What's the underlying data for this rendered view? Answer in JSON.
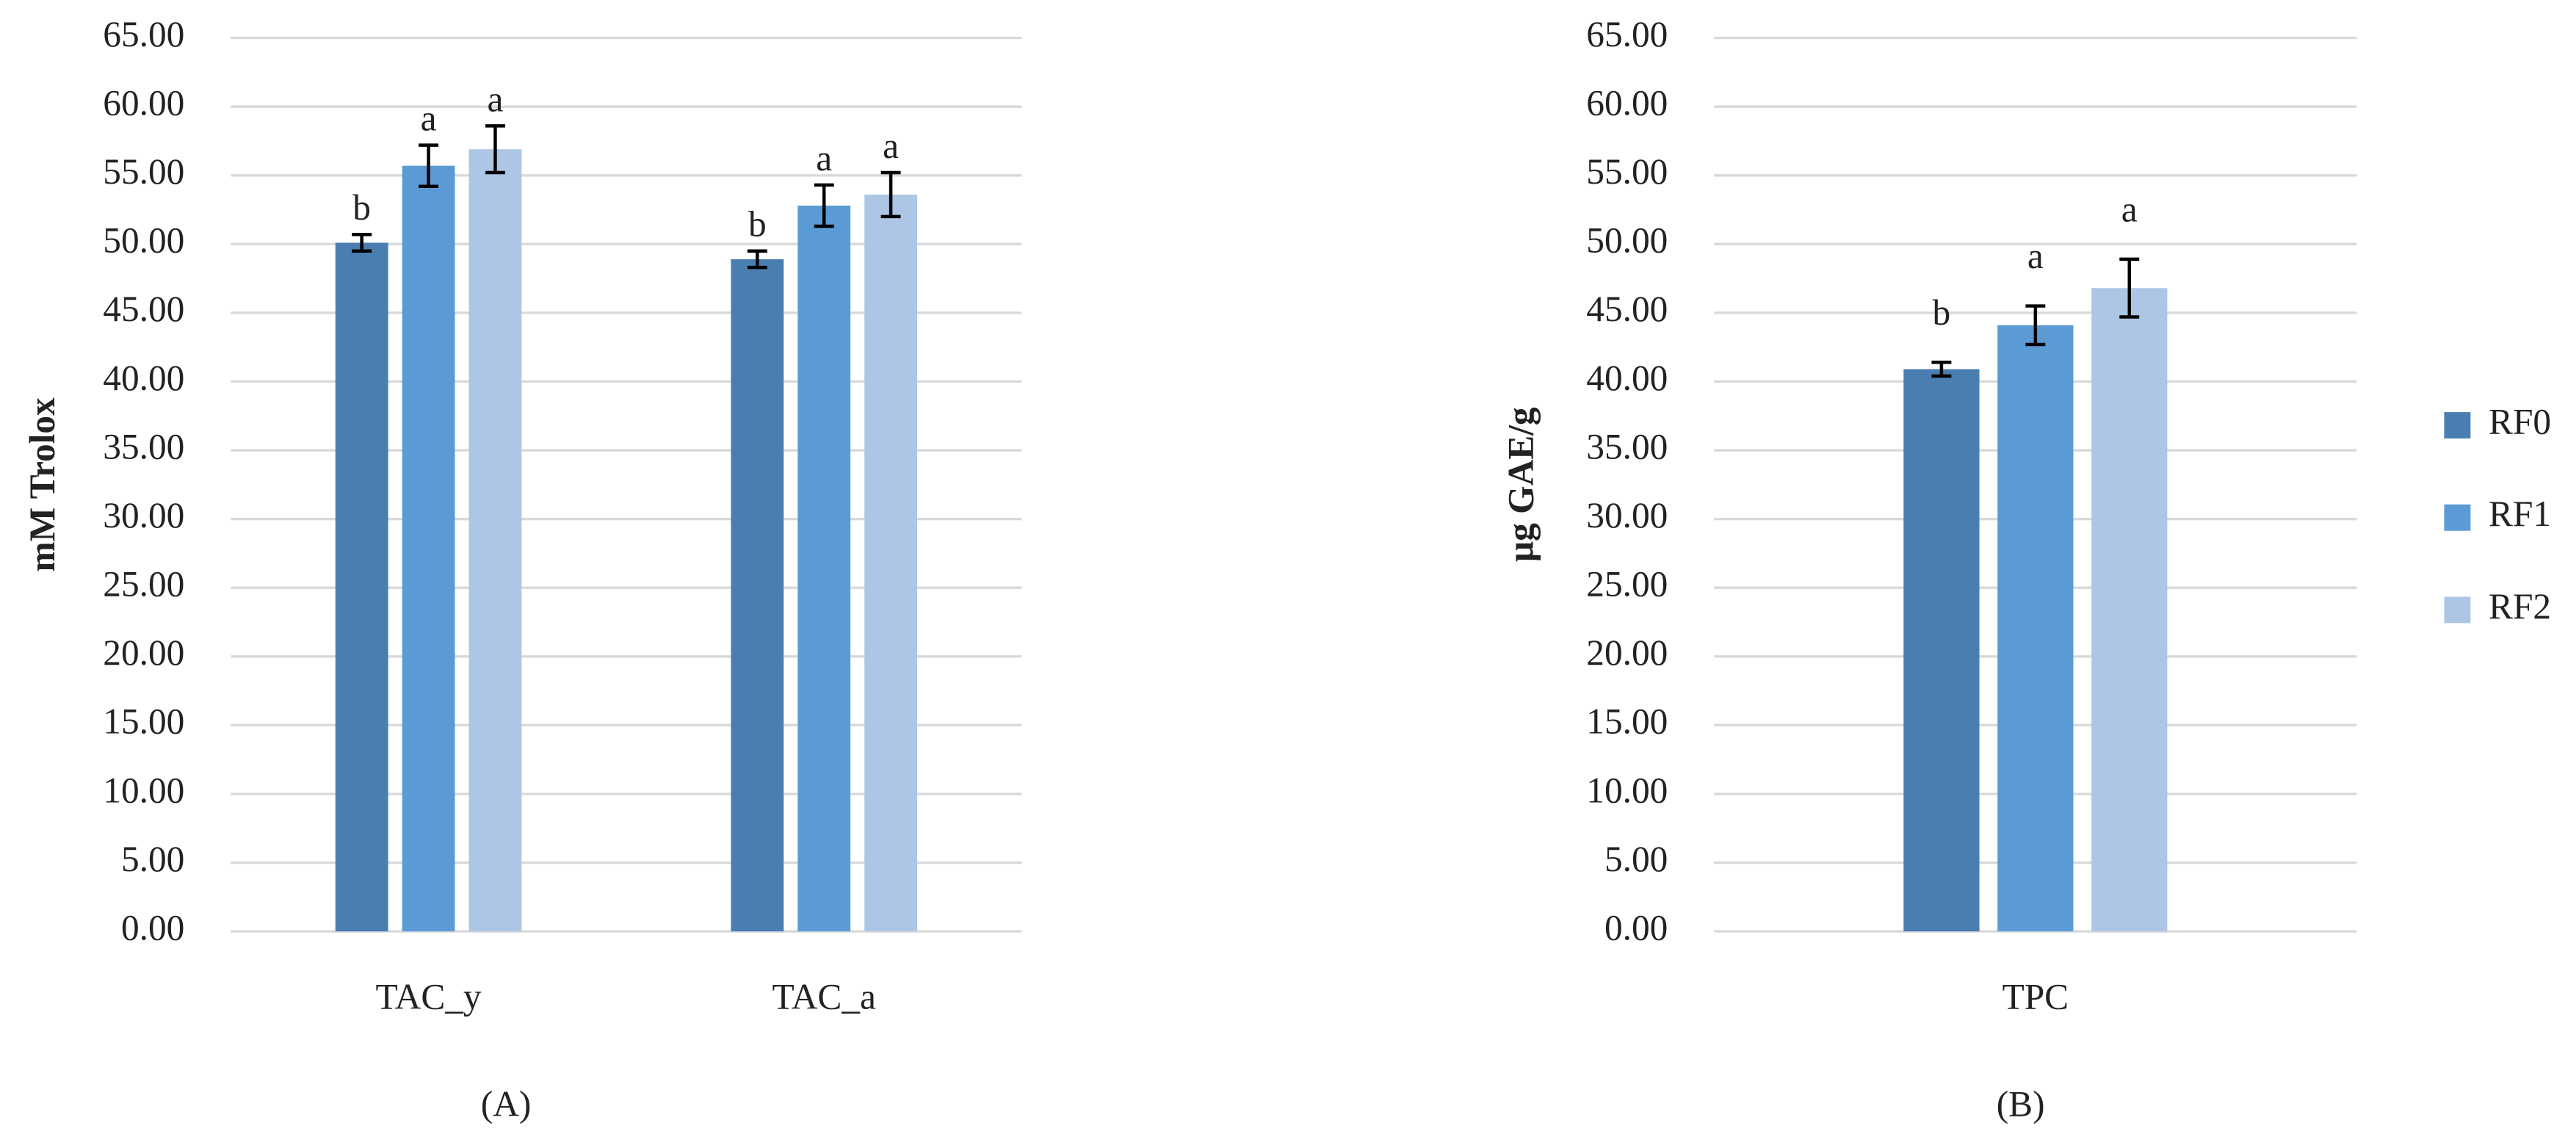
{
  "chart_data": [
    {
      "type": "bar",
      "y_label": "mM Trolox",
      "panel_label": "(A)",
      "categories": [
        "TAC_y",
        "TAC_a"
      ],
      "series": [
        {
          "color": "#4a7eb1",
          "values": [
            50.1,
            48.9
          ],
          "errors": [
            0.6,
            0.6
          ],
          "letters": [
            "b",
            "b"
          ]
        },
        {
          "color": "#5b9bd5",
          "values": [
            55.7,
            52.8
          ],
          "errors": [
            1.5,
            1.5
          ],
          "letters": [
            "a",
            "a"
          ]
        },
        {
          "color": "#adc6e5",
          "values": [
            56.9,
            53.6
          ],
          "errors": [
            1.7,
            1.6
          ],
          "letters": [
            "a",
            "a"
          ]
        }
      ],
      "ylim": [
        0,
        65
      ],
      "yticks": [
        {
          "value": 0,
          "label": "0.00"
        },
        {
          "value": 5,
          "label": "5.00"
        },
        {
          "value": 10,
          "label": "10.00"
        },
        {
          "value": 15,
          "label": "15.00"
        },
        {
          "value": 20,
          "label": "20.00"
        },
        {
          "value": 25,
          "label": "25.00"
        },
        {
          "value": 30,
          "label": "30.00"
        },
        {
          "value": 35,
          "label": "35.00"
        },
        {
          "value": 40,
          "label": "40.00"
        },
        {
          "value": 45,
          "label": "45.00"
        },
        {
          "value": 50,
          "label": "50.00"
        },
        {
          "value": 55,
          "label": "55.00"
        },
        {
          "value": 60,
          "label": "60.00"
        },
        {
          "value": 65,
          "label": "65.00"
        }
      ],
      "grid": true
    },
    {
      "type": "bar",
      "y_label": "µg GAE/g",
      "panel_label": "(B)",
      "categories": [
        "TPC"
      ],
      "series": [
        {
          "name": "RF0",
          "color": "#4a7eb1",
          "values": [
            40.9
          ],
          "errors": [
            0.5
          ],
          "letters": [
            "b"
          ]
        },
        {
          "name": "RF1",
          "color": "#5b9bd5",
          "values": [
            44.1
          ],
          "errors": [
            1.4
          ],
          "letters": [
            "a"
          ]
        },
        {
          "name": "RF2",
          "color": "#adc6e5",
          "values": [
            46.8
          ],
          "errors": [
            2.1
          ],
          "letters": [
            "a"
          ]
        }
      ],
      "ylim": [
        0,
        65
      ],
      "yticks": [
        {
          "value": 0,
          "label": "0.00"
        },
        {
          "value": 5,
          "label": "5.00"
        },
        {
          "value": 10,
          "label": "10.00"
        },
        {
          "value": 15,
          "label": "15.00"
        },
        {
          "value": 20,
          "label": "20.00"
        },
        {
          "value": 25,
          "label": "25.00"
        },
        {
          "value": 30,
          "label": "30.00"
        },
        {
          "value": 35,
          "label": "35.00"
        },
        {
          "value": 40,
          "label": "40.00"
        },
        {
          "value": 45,
          "label": "45.00"
        },
        {
          "value": 50,
          "label": "50.00"
        },
        {
          "value": 55,
          "label": "55.00"
        },
        {
          "value": 60,
          "label": "60.00"
        },
        {
          "value": 65,
          "label": "65.00"
        }
      ],
      "grid": true,
      "legend": "right"
    }
  ]
}
